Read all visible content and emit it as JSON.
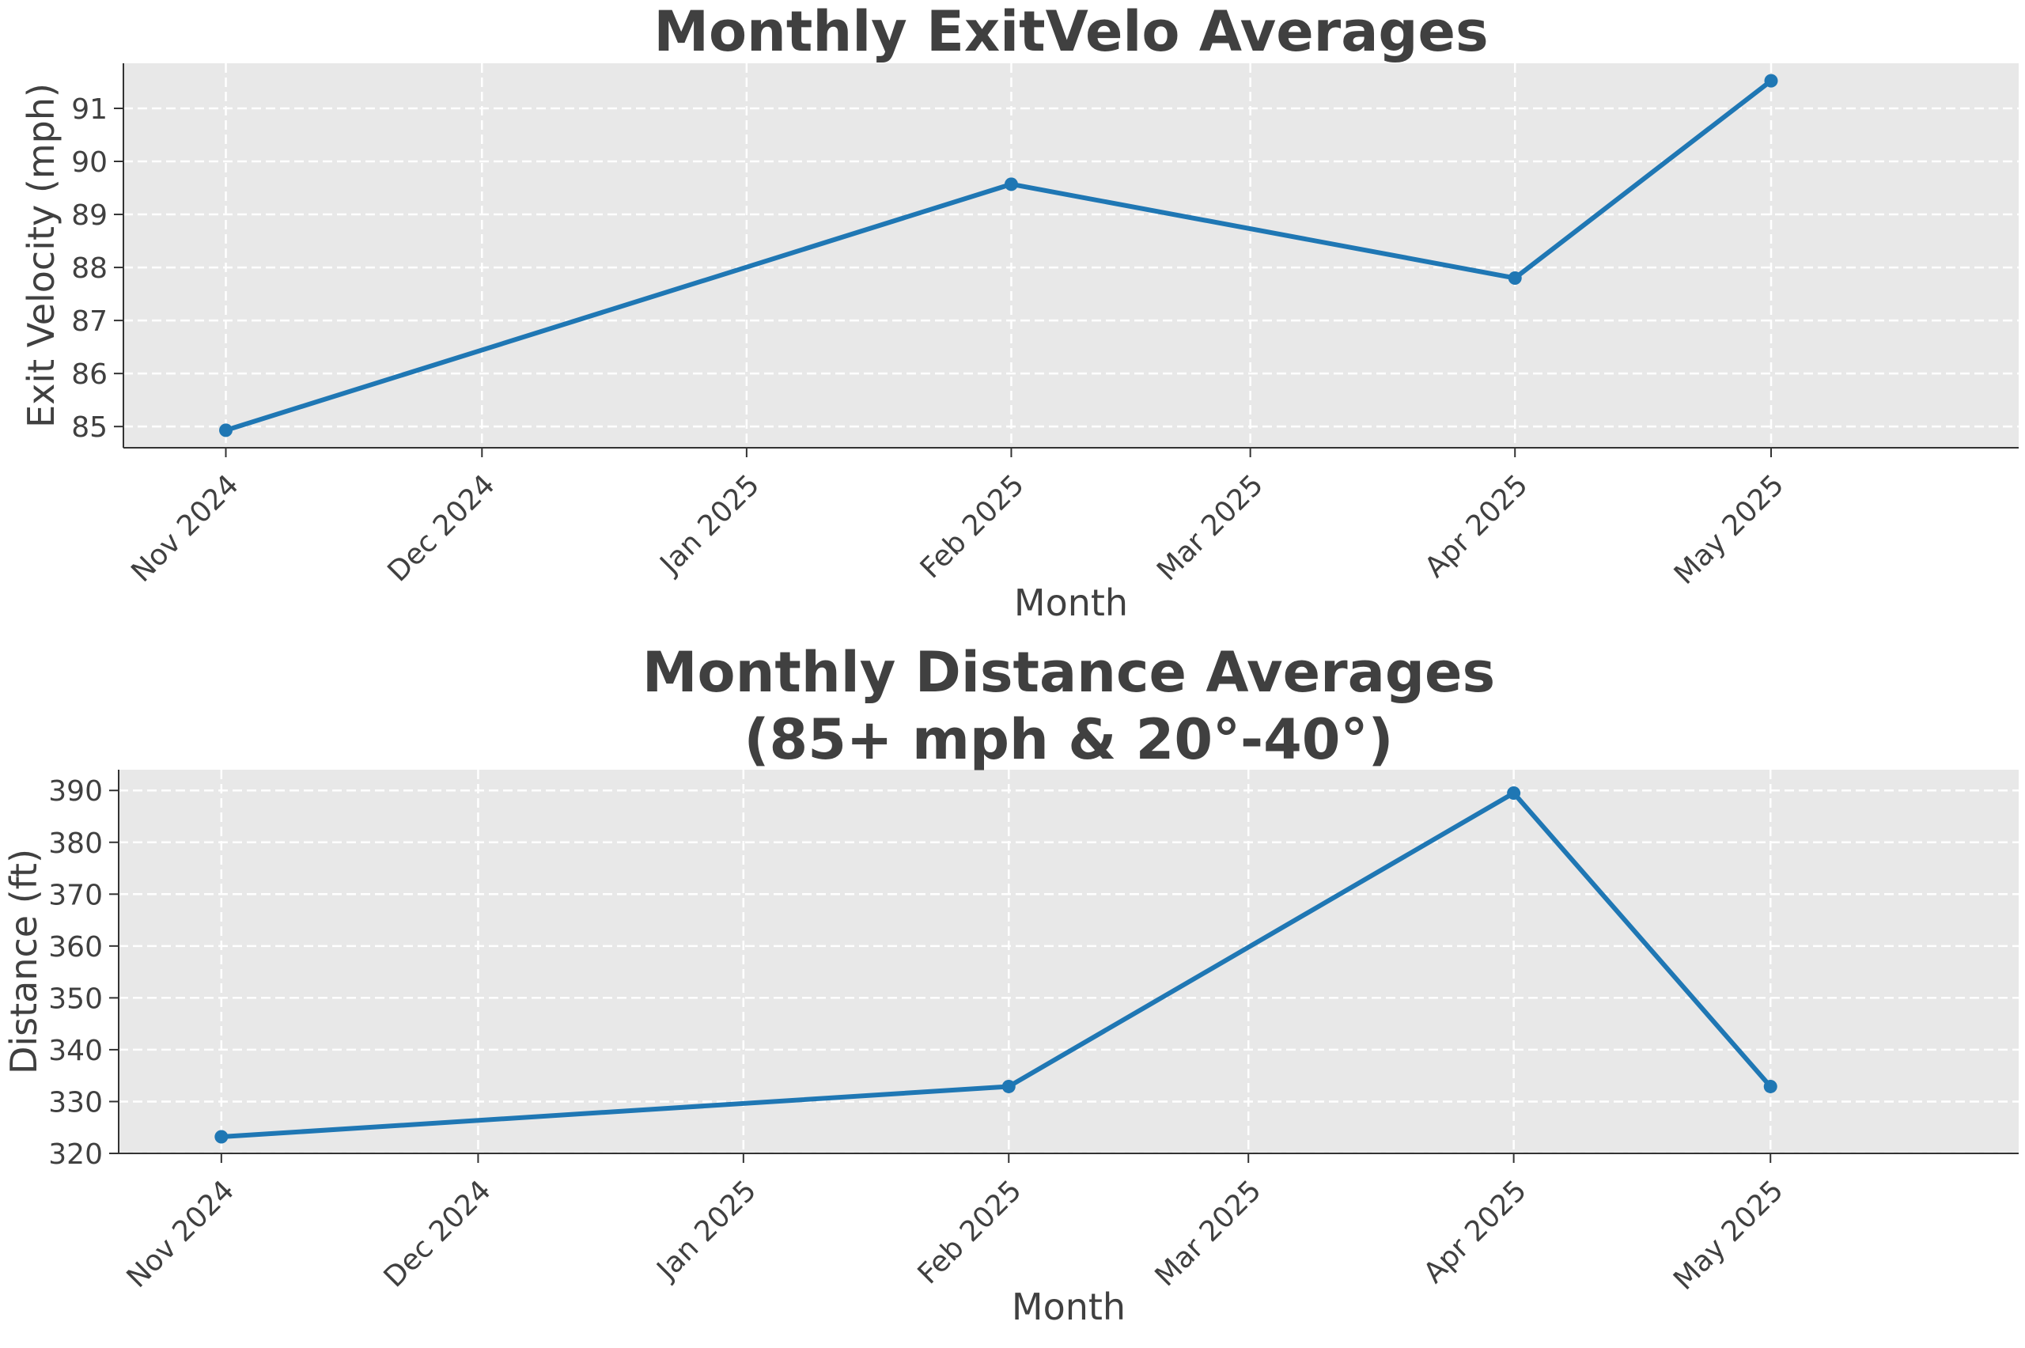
{
  "chart_data": [
    {
      "type": "line",
      "title": [
        "Monthly ExitVelo Averages"
      ],
      "xlabel": "Month",
      "ylabel": "Exit Velocity (mph)",
      "x_ticks": [
        "Nov 2024",
        "Dec 2024",
        "Jan 2025",
        "Feb 2025",
        "Mar 2025",
        "Apr 2025",
        "May 2025"
      ],
      "x_range": [
        "2024-10-20",
        "2025-05-30"
      ],
      "y_ticks": [
        85,
        86,
        87,
        88,
        89,
        90,
        91
      ],
      "ylim": [
        84.6,
        91.85
      ],
      "grid": true,
      "series": [
        {
          "color": "#1f77b4",
          "x": [
            "2024-11-01",
            "2025-02-01",
            "2025-04-01",
            "2025-05-01"
          ],
          "y": [
            84.93,
            89.57,
            87.8,
            91.52
          ]
        }
      ]
    },
    {
      "type": "line",
      "title": [
        "Monthly Distance Averages",
        "(85+ mph & 20°-40°)"
      ],
      "xlabel": "Month",
      "ylabel": "Distance (ft)",
      "x_ticks": [
        "Nov 2024",
        "Dec 2024",
        "Jan 2025",
        "Feb 2025",
        "Mar 2025",
        "Apr 2025",
        "May 2025"
      ],
      "x_range": [
        "2024-10-20",
        "2025-05-30"
      ],
      "y_ticks": [
        320,
        330,
        340,
        350,
        360,
        370,
        380,
        390
      ],
      "ylim": [
        320,
        394
      ],
      "grid": true,
      "series": [
        {
          "color": "#1f77b4",
          "x": [
            "2024-11-01",
            "2025-02-01",
            "2025-04-01",
            "2025-05-01"
          ],
          "y": [
            323.2,
            332.9,
            389.5,
            332.9
          ]
        }
      ]
    }
  ]
}
